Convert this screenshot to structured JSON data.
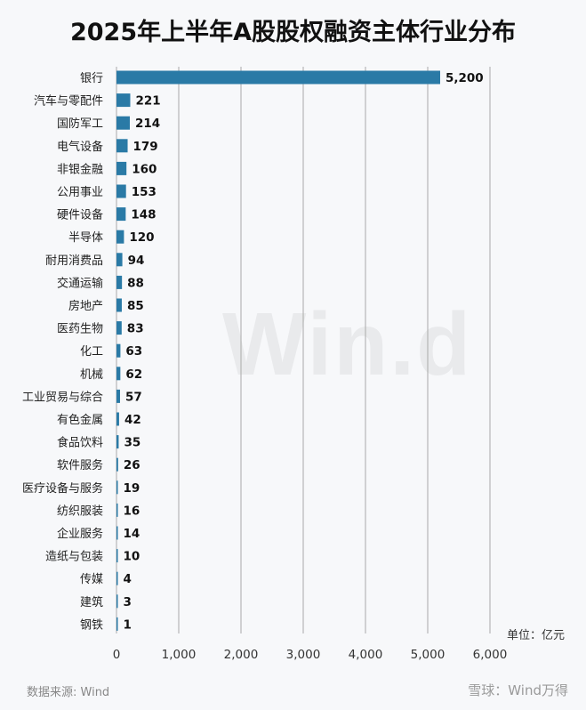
{
  "watermark": "Win.d",
  "source": "数据来源: Wind",
  "brand": "雪球：Wind万得",
  "chart_data": {
    "type": "bar",
    "orientation": "horizontal",
    "title": "2025年上半年A股股权融资主体行业分布",
    "unit": "单位：亿元",
    "categories": [
      "银行",
      "汽车与零配件",
      "国防军工",
      "电气设备",
      "非银金融",
      "公用事业",
      "硬件设备",
      "半导体",
      "耐用消费品",
      "交通运输",
      "房地产",
      "医药生物",
      "化工",
      "机械",
      "工业贸易与综合",
      "有色金属",
      "食品饮料",
      "软件服务",
      "医疗设备与服务",
      "纺织服装",
      "企业服务",
      "造纸与包装",
      "传媒",
      "建筑",
      "钢铁"
    ],
    "values": [
      5200,
      221,
      214,
      179,
      160,
      153,
      148,
      120,
      94,
      88,
      85,
      83,
      63,
      62,
      57,
      42,
      35,
      26,
      19,
      16,
      14,
      10,
      4,
      3,
      1
    ],
    "value_labels": [
      "5,200",
      "221",
      "214",
      "179",
      "160",
      "153",
      "148",
      "120",
      "94",
      "88",
      "85",
      "83",
      "63",
      "62",
      "57",
      "42",
      "35",
      "26",
      "19",
      "16",
      "14",
      "10",
      "4",
      "3",
      "1"
    ],
    "xlim": [
      0,
      6000
    ],
    "x_ticks": [
      0,
      1000,
      2000,
      3000,
      4000,
      5000,
      6000
    ],
    "x_tick_labels": [
      "0",
      "1,000",
      "2,000",
      "3,000",
      "4,000",
      "5,000",
      "6,000"
    ],
    "grid": true,
    "bar_color": "#2a7aa6"
  }
}
